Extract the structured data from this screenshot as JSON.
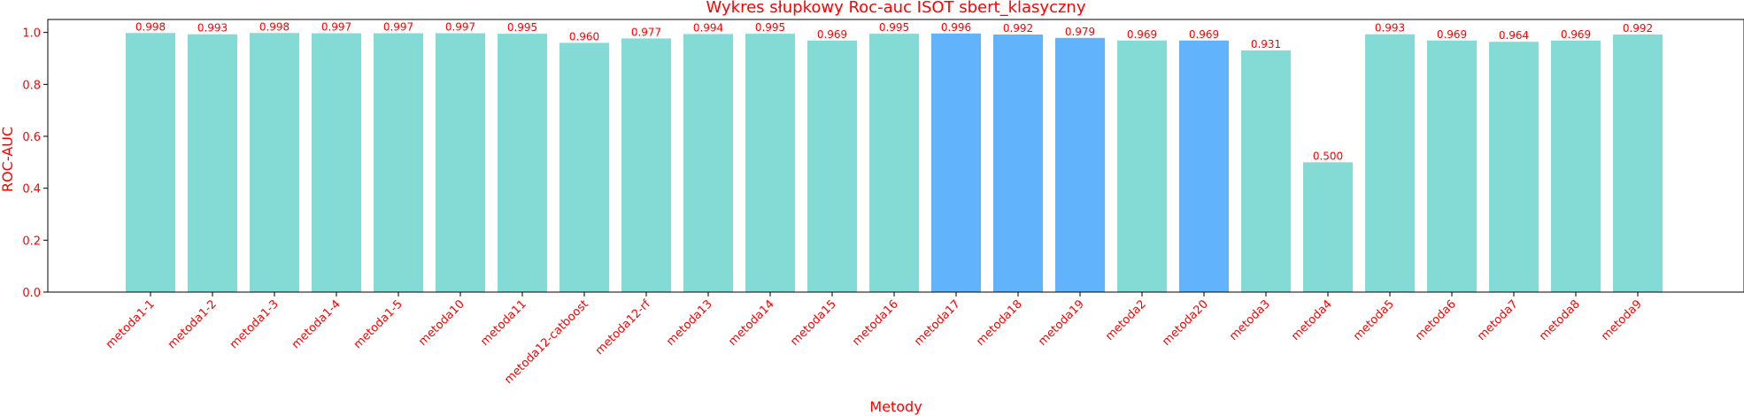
{
  "chart_data": {
    "type": "bar",
    "title": "Wykres słupkowy Roc-auc ISOT sbert_klasyczny",
    "xlabel": "Metody",
    "ylabel": "ROC-AUC",
    "ylim": [
      0,
      1.05
    ],
    "yticks": [
      "0.0",
      "0.2",
      "0.4",
      "0.6",
      "0.8",
      "1.0"
    ],
    "grid": false,
    "categories": [
      "metoda1-1",
      "metoda1-2",
      "metoda1-3",
      "metoda1-4",
      "metoda1-5",
      "metoda10",
      "metoda11",
      "metoda12-catboost",
      "metoda12-rf",
      "metoda13",
      "metoda14",
      "metoda15",
      "metoda16",
      "metoda17",
      "metoda18",
      "metoda19",
      "metoda2",
      "metoda20",
      "metoda3",
      "metoda4",
      "metoda5",
      "metoda6",
      "metoda7",
      "metoda8",
      "metoda9"
    ],
    "values": [
      0.998,
      0.993,
      0.998,
      0.997,
      0.997,
      0.997,
      0.995,
      0.96,
      0.977,
      0.994,
      0.995,
      0.969,
      0.995,
      0.996,
      0.992,
      0.979,
      0.969,
      0.969,
      0.931,
      0.5,
      0.993,
      0.969,
      0.964,
      0.969,
      0.992
    ],
    "value_labels": [
      "0.998",
      "0.993",
      "0.998",
      "0.997",
      "0.997",
      "0.997",
      "0.995",
      "0.960",
      "0.977",
      "0.994",
      "0.995",
      "0.969",
      "0.995",
      "0.996",
      "0.992",
      "0.979",
      "0.969",
      "0.969",
      "0.931",
      "0.500",
      "0.993",
      "0.969",
      "0.964",
      "0.969",
      "0.992"
    ],
    "highlighted": [
      "metoda17",
      "metoda18",
      "metoda19",
      "metoda20"
    ],
    "colors": {
      "default": "#84dad5",
      "highlight": "#61b3fb",
      "text": "#ff0000",
      "axis": "#000000"
    }
  }
}
